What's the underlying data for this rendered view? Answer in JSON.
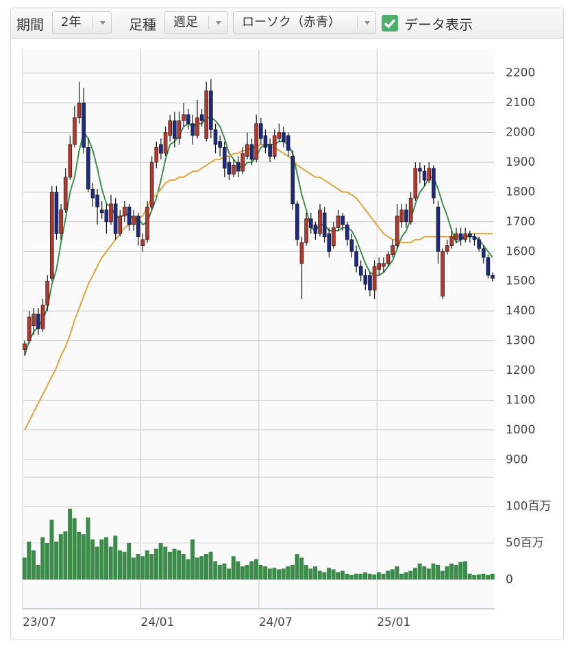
{
  "controls": {
    "period_label": "期間",
    "period": "2年",
    "interval_label": "足種",
    "interval": "週足",
    "chart_style": "ローソク（赤青）",
    "show_data": "データ表示",
    "show_data_checked": true
  },
  "chart_data": {
    "type": "candlestick",
    "categories": [
      "23/07",
      null,
      null,
      null,
      null,
      null,
      null,
      null,
      null,
      null,
      null,
      null,
      null,
      null,
      null,
      null,
      null,
      null,
      null,
      null,
      null,
      null,
      null,
      null,
      null,
      null,
      "24/01",
      null,
      null,
      null,
      null,
      null,
      null,
      null,
      null,
      null,
      null,
      null,
      null,
      null,
      null,
      null,
      null,
      null,
      null,
      null,
      null,
      null,
      null,
      null,
      null,
      null,
      "24/07",
      null,
      null,
      null,
      null,
      null,
      null,
      null,
      null,
      null,
      null,
      null,
      null,
      null,
      null,
      null,
      null,
      null,
      null,
      null,
      null,
      null,
      null,
      null,
      null,
      null,
      "25/01",
      null,
      null,
      null,
      null,
      null,
      null,
      null,
      null,
      null,
      null,
      null,
      null,
      null,
      null,
      null,
      null,
      null,
      null,
      null,
      null,
      null,
      null,
      null,
      null,
      null
    ],
    "open": [
      1270,
      1300,
      1350,
      1390,
      1340,
      1420,
      1510,
      1800,
      1660,
      1740,
      1850,
      1960,
      2050,
      2100,
      1950,
      1810,
      1790,
      1740,
      1740,
      1700,
      1760,
      1660,
      1720,
      1750,
      1690,
      1720,
      1620,
      1640,
      1750,
      1900,
      1960,
      1930,
      1990,
      2040,
      1980,
      2040,
      2060,
      2030,
      1990,
      2060,
      1980,
      2140,
      2010,
      1970,
      1950,
      1900,
      1860,
      1900,
      1870,
      1920,
      1960,
      1910,
      2030,
      1990,
      1960,
      1920,
      1980,
      2000,
      1990,
      1920,
      1760,
      1560,
      1630,
      1710,
      1690,
      1660,
      1730,
      1660,
      1620,
      1680,
      1720,
      1690,
      1640,
      1600,
      1550,
      1520,
      1520,
      1470,
      1540,
      1550,
      1560,
      1590,
      1620,
      1700,
      1740,
      1700,
      1780,
      1880,
      1870,
      1840,
      1880,
      1750,
      1450,
      1600,
      1620,
      1640,
      1660,
      1640,
      1660,
      1650,
      1640,
      1610,
      1580,
      1520
    ],
    "high": [
      1300,
      1400,
      1410,
      1410,
      1440,
      1520,
      1820,
      1820,
      1760,
      1880,
      1990,
      2090,
      2170,
      2150,
      1980,
      1830,
      1810,
      1770,
      1760,
      1790,
      1780,
      1740,
      1770,
      1760,
      1740,
      1730,
      1660,
      1770,
      1920,
      1970,
      1980,
      2020,
      2060,
      2070,
      2070,
      2100,
      2080,
      2060,
      2110,
      2080,
      2170,
      2180,
      2030,
      1990,
      1970,
      1920,
      1910,
      1920,
      1950,
      2000,
      1980,
      2060,
      2050,
      2010,
      1980,
      2010,
      2030,
      2020,
      2000,
      1940,
      1770,
      1650,
      1730,
      1730,
      1700,
      1760,
      1750,
      1680,
      1700,
      1740,
      1730,
      1700,
      1660,
      1620,
      1570,
      1540,
      1530,
      1570,
      1580,
      1580,
      1600,
      1640,
      1760,
      1760,
      1760,
      1800,
      1900,
      1900,
      1890,
      1900,
      1890,
      1770,
      1610,
      1640,
      1670,
      1680,
      1680,
      1680,
      1670,
      1660,
      1650,
      1620,
      1590,
      1530
    ],
    "low": [
      1250,
      1290,
      1320,
      1320,
      1330,
      1400,
      1500,
      1640,
      1640,
      1730,
      1840,
      1950,
      2030,
      1930,
      1800,
      1750,
      1690,
      1710,
      1660,
      1690,
      1640,
      1650,
      1700,
      1670,
      1670,
      1620,
      1600,
      1630,
      1740,
      1880,
      1910,
      1920,
      1970,
      1950,
      1960,
      2020,
      2010,
      1960,
      1980,
      2020,
      1970,
      1980,
      1930,
      1920,
      1850,
      1840,
      1850,
      1850,
      1860,
      1910,
      1890,
      1900,
      1960,
      1930,
      1900,
      1910,
      1970,
      1950,
      1920,
      1740,
      1620,
      1440,
      1620,
      1660,
      1640,
      1650,
      1630,
      1580,
      1610,
      1670,
      1670,
      1620,
      1580,
      1530,
      1500,
      1470,
      1450,
      1440,
      1520,
      1530,
      1550,
      1580,
      1610,
      1680,
      1680,
      1690,
      1770,
      1830,
      1820,
      1830,
      1760,
      1560,
      1440,
      1590,
      1610,
      1630,
      1620,
      1630,
      1630,
      1620,
      1600,
      1560,
      1510,
      1500
    ],
    "close": [
      1290,
      1380,
      1390,
      1340,
      1420,
      1500,
      1800,
      1660,
      1740,
      1850,
      1960,
      2050,
      2100,
      1950,
      1810,
      1780,
      1750,
      1730,
      1700,
      1760,
      1660,
      1720,
      1750,
      1690,
      1720,
      1650,
      1640,
      1750,
      1900,
      1950,
      1930,
      2000,
      2040,
      1980,
      2040,
      2060,
      2030,
      1990,
      2050,
      2040,
      2140,
      2010,
      1960,
      1950,
      1880,
      1860,
      1890,
      1870,
      1930,
      1960,
      1910,
      2030,
      1980,
      1950,
      1920,
      1990,
      2000,
      1970,
      1940,
      1760,
      1640,
      1630,
      1710,
      1680,
      1660,
      1740,
      1650,
      1600,
      1680,
      1720,
      1690,
      1640,
      1600,
      1550,
      1520,
      1490,
      1470,
      1550,
      1560,
      1560,
      1590,
      1620,
      1720,
      1740,
      1700,
      1780,
      1880,
      1870,
      1840,
      1880,
      1780,
      1600,
      1600,
      1620,
      1650,
      1660,
      1640,
      1660,
      1650,
      1640,
      1610,
      1580,
      1520,
      1510
    ],
    "up_color": "#b4382c",
    "down_color": "#1c2a80",
    "series": [
      {
        "color": "#3d8f4e",
        "values": [
          1250,
          1300,
          1330,
          1350,
          1370,
          1410,
          1490,
          1540,
          1630,
          1710,
          1800,
          1850,
          1940,
          2000,
          1980,
          1940,
          1880,
          1810,
          1760,
          1750,
          1720,
          1710,
          1730,
          1720,
          1710,
          1710,
          1690,
          1700,
          1740,
          1780,
          1840,
          1910,
          1960,
          1970,
          1990,
          2020,
          2030,
          2020,
          2030,
          2030,
          2050,
          2050,
          2040,
          2020,
          1980,
          1930,
          1910,
          1890,
          1880,
          1900,
          1900,
          1920,
          1950,
          1960,
          1960,
          1960,
          1970,
          1970,
          1960,
          1930,
          1860,
          1790,
          1740,
          1680,
          1670,
          1690,
          1690,
          1670,
          1670,
          1670,
          1680,
          1680,
          1670,
          1640,
          1600,
          1560,
          1530,
          1520,
          1520,
          1530,
          1550,
          1570,
          1610,
          1650,
          1670,
          1710,
          1760,
          1800,
          1820,
          1850,
          1850,
          1810,
          1760,
          1720,
          1670,
          1630,
          1640,
          1650,
          1650,
          1650,
          1640,
          1620,
          1600,
          1580
        ]
      },
      {
        "color": "#e0a53a",
        "values": [
          1000,
          1030,
          1060,
          1090,
          1120,
          1150,
          1180,
          1210,
          1250,
          1280,
          1320,
          1370,
          1410,
          1450,
          1490,
          1520,
          1550,
          1580,
          1600,
          1620,
          1640,
          1660,
          1680,
          1690,
          1700,
          1710,
          1720,
          1750,
          1780,
          1790,
          1810,
          1830,
          1840,
          1840,
          1850,
          1850,
          1860,
          1870,
          1870,
          1880,
          1890,
          1900,
          1910,
          1910,
          1920,
          1920,
          1930,
          1930,
          1940,
          1940,
          1950,
          1950,
          1960,
          1960,
          1950,
          1950,
          1940,
          1930,
          1920,
          1910,
          1890,
          1880,
          1870,
          1860,
          1850,
          1850,
          1840,
          1830,
          1820,
          1810,
          1800,
          1800,
          1790,
          1780,
          1760,
          1740,
          1720,
          1700,
          1680,
          1660,
          1650,
          1640,
          1640,
          1630,
          1630,
          1630,
          1640,
          1640,
          1650,
          1650,
          1650,
          1650,
          1650,
          1650,
          1650,
          1650,
          1650,
          1650,
          1660,
          1660,
          1660,
          1660,
          1660,
          1660
        ]
      }
    ],
    "volume": {
      "color": "#3d8b4a",
      "axis": "y2",
      "values": [
        30,
        52,
        40,
        20,
        58,
        50,
        82,
        52,
        62,
        66,
        97,
        84,
        65,
        62,
        85,
        55,
        45,
        55,
        58,
        45,
        60,
        40,
        38,
        50,
        30,
        35,
        32,
        40,
        35,
        42,
        50,
        45,
        38,
        42,
        40,
        35,
        28,
        55,
        30,
        32,
        35,
        38,
        25,
        20,
        22,
        15,
        32,
        25,
        18,
        20,
        25,
        28,
        20,
        18,
        15,
        16,
        14,
        15,
        18,
        20,
        35,
        30,
        20,
        15,
        18,
        12,
        10,
        16,
        14,
        10,
        12,
        8,
        6,
        8,
        8,
        10,
        8,
        7,
        10,
        8,
        12,
        14,
        18,
        8,
        10,
        12,
        16,
        22,
        18,
        15,
        22,
        20,
        12,
        18,
        22,
        20,
        24,
        25,
        8,
        6,
        7,
        8,
        6,
        8
      ]
    },
    "ylim": [
      880,
      2280
    ],
    "yticks": [
      900,
      1000,
      1100,
      1200,
      1300,
      1400,
      1500,
      1600,
      1700,
      1800,
      1900,
      2000,
      2100,
      2200
    ],
    "y2lim": [
      -40,
      140
    ],
    "y2ticks": [
      0,
      {
        "value": 50,
        "label": "50百万"
      },
      {
        "value": 100,
        "label": "100百万"
      }
    ],
    "grid": true
  }
}
